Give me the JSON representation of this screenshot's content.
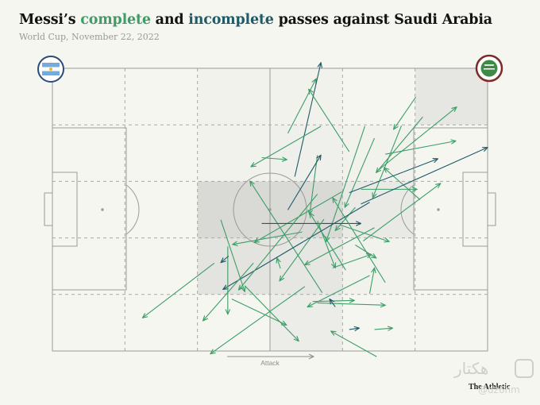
{
  "title": {
    "pre": "Messi’s ",
    "complete": "complete",
    "mid": " and ",
    "incomplete": "incomplete",
    "post": " passes against Saudi Arabia"
  },
  "subtitle": "World Cup, November 22, 2022",
  "attack_label": "Attack",
  "credit": "The Athletic",
  "watermark": {
    "arabic": "هكتار",
    "handle": "@dz6hm"
  },
  "colors": {
    "complete": "#3c9e66",
    "incomplete": "#1f5b67",
    "zone_fill": "#d9d9d6",
    "pitch_line": "#9a9a96"
  },
  "teams": {
    "home": {
      "name": "Argentina",
      "icon": "argentina-flag-badge"
    },
    "away": {
      "name": "Saudi Arabia",
      "icon": "saudi-arabia-badge"
    }
  },
  "chart_data": {
    "type": "pass-map",
    "pitch": {
      "length": 100,
      "width": 100
    },
    "zones": {
      "columns": 6,
      "rows": 5
    },
    "zone_shading": [
      {
        "col": 2,
        "row": 0,
        "level": 0.12
      },
      {
        "col": 3,
        "row": 0,
        "level": 0.12
      },
      {
        "col": 5,
        "row": 0,
        "level": 0.55
      },
      {
        "col": 2,
        "row": 1,
        "level": 0.12
      },
      {
        "col": 3,
        "row": 1,
        "level": 0.2
      },
      {
        "col": 4,
        "row": 1,
        "level": 0.12
      },
      {
        "col": 2,
        "row": 2,
        "level": 1.0
      },
      {
        "col": 3,
        "row": 2,
        "level": 1.0
      },
      {
        "col": 4,
        "row": 2,
        "level": 0.45
      },
      {
        "col": 2,
        "row": 3,
        "level": 0.65
      },
      {
        "col": 3,
        "row": 3,
        "level": 0.55
      },
      {
        "col": 4,
        "row": 3,
        "level": 0.12
      },
      {
        "col": 3,
        "row": 4,
        "level": 0.35
      }
    ],
    "passes": [
      {
        "x1": 54.1,
        "y1": 23.0,
        "x2": 60.6,
        "y2": 3.7,
        "outcome": "complete"
      },
      {
        "x1": 55.7,
        "y1": 38.3,
        "x2": 61.7,
        "y2": -2.0,
        "outcome": "incomplete"
      },
      {
        "x1": 61.7,
        "y1": 20.5,
        "x2": 45.6,
        "y2": 34.8,
        "outcome": "complete"
      },
      {
        "x1": 68.2,
        "y1": 29.5,
        "x2": 58.9,
        "y2": 7.4,
        "outcome": "complete"
      },
      {
        "x1": 71.8,
        "y1": 20.5,
        "x2": 62.9,
        "y2": 61.3,
        "outcome": "complete"
      },
      {
        "x1": 74.0,
        "y1": 24.7,
        "x2": 67.2,
        "y2": 49.2,
        "outcome": "complete"
      },
      {
        "x1": 60.9,
        "y1": 30.7,
        "x2": 59.1,
        "y2": 51.8,
        "outcome": "complete"
      },
      {
        "x1": 48.1,
        "y1": 31.6,
        "x2": 53.9,
        "y2": 32.3,
        "outcome": "complete"
      },
      {
        "x1": 54.1,
        "y1": 50.1,
        "x2": 61.7,
        "y2": 30.7,
        "outcome": "incomplete"
      },
      {
        "x1": 52.4,
        "y1": 70.8,
        "x2": 51.6,
        "y2": 67.1,
        "outcome": "complete"
      },
      {
        "x1": 66.5,
        "y1": 43.7,
        "x2": 46.4,
        "y2": 61.6,
        "outcome": "complete"
      },
      {
        "x1": 67.4,
        "y1": 71.4,
        "x2": 59.1,
        "y2": 51.1,
        "outcome": "complete"
      },
      {
        "x1": 69.6,
        "y1": 49.2,
        "x2": 65.0,
        "y2": 57.4,
        "outcome": "complete"
      },
      {
        "x1": 62.0,
        "y1": 79.4,
        "x2": 45.4,
        "y2": 39.9,
        "outcome": "complete"
      },
      {
        "x1": 57.4,
        "y1": 57.9,
        "x2": 41.4,
        "y2": 62.3,
        "outcome": "complete"
      },
      {
        "x1": 48.1,
        "y1": 54.9,
        "x2": 70.9,
        "y2": 54.9,
        "outcome": "incomplete"
      },
      {
        "x1": 60.9,
        "y1": 54.0,
        "x2": 65.0,
        "y2": 70.6,
        "outcome": "complete"
      },
      {
        "x1": 64.4,
        "y1": 70.6,
        "x2": 73.3,
        "y2": 65.8,
        "outcome": "complete"
      },
      {
        "x1": 76.5,
        "y1": 75.8,
        "x2": 64.4,
        "y2": 45.8,
        "outcome": "complete"
      },
      {
        "x1": 84.5,
        "y1": 46.5,
        "x2": 76.2,
        "y2": 35.2,
        "outcome": "complete"
      },
      {
        "x1": 80.2,
        "y1": 20.3,
        "x2": 73.6,
        "y2": 45.8,
        "outcome": "complete"
      },
      {
        "x1": 76.5,
        "y1": 30.4,
        "x2": 92.7,
        "y2": 25.7,
        "outcome": "complete"
      },
      {
        "x1": 85.1,
        "y1": 17.2,
        "x2": 74.4,
        "y2": 36.9,
        "outcome": "complete"
      },
      {
        "x1": 83.5,
        "y1": 10.2,
        "x2": 78.4,
        "y2": 21.6,
        "outcome": "complete"
      },
      {
        "x1": 74.5,
        "y1": 36.5,
        "x2": 92.9,
        "y2": 13.7,
        "outcome": "complete"
      },
      {
        "x1": 71.4,
        "y1": 61.1,
        "x2": 89.2,
        "y2": 40.7,
        "outcome": "complete"
      },
      {
        "x1": 70.9,
        "y1": 42.8,
        "x2": 83.8,
        "y2": 42.8,
        "outcome": "complete"
      },
      {
        "x1": 68.2,
        "y1": 44.0,
        "x2": 88.6,
        "y2": 32.0,
        "outcome": "incomplete"
      },
      {
        "x1": 70.9,
        "y1": 48.0,
        "x2": 100.0,
        "y2": 28.0,
        "outcome": "incomplete"
      },
      {
        "x1": 66.1,
        "y1": 55.4,
        "x2": 77.4,
        "y2": 61.3,
        "outcome": "complete"
      },
      {
        "x1": 69.6,
        "y1": 62.5,
        "x2": 74.4,
        "y2": 67.1,
        "outcome": "complete"
      },
      {
        "x1": 74.0,
        "y1": 56.4,
        "x2": 58.0,
        "y2": 69.5,
        "outcome": "complete"
      },
      {
        "x1": 62.4,
        "y1": 53.4,
        "x2": 52.2,
        "y2": 75.2,
        "outcome": "complete"
      },
      {
        "x1": 72.9,
        "y1": 47.4,
        "x2": 39.2,
        "y2": 78.2,
        "outcome": "incomplete"
      },
      {
        "x1": 72.9,
        "y1": 73.3,
        "x2": 58.6,
        "y2": 84.4,
        "outcome": "complete"
      },
      {
        "x1": 59.8,
        "y1": 82.5,
        "x2": 69.4,
        "y2": 82.1,
        "outcome": "complete"
      },
      {
        "x1": 60.9,
        "y1": 83.0,
        "x2": 76.5,
        "y2": 83.8,
        "outcome": "complete"
      },
      {
        "x1": 68.2,
        "y1": 92.4,
        "x2": 70.5,
        "y2": 91.9,
        "outcome": "incomplete"
      },
      {
        "x1": 65.0,
        "y1": 84.4,
        "x2": 63.7,
        "y2": 81.6,
        "outcome": "incomplete"
      },
      {
        "x1": 58.0,
        "y1": 77.2,
        "x2": 36.3,
        "y2": 101.0,
        "outcome": "complete"
      },
      {
        "x1": 40.3,
        "y1": 63.0,
        "x2": 40.3,
        "y2": 87.0,
        "outcome": "complete"
      },
      {
        "x1": 46.2,
        "y1": 68.9,
        "x2": 34.6,
        "y2": 89.3,
        "outcome": "complete"
      },
      {
        "x1": 44.2,
        "y1": 76.9,
        "x2": 56.6,
        "y2": 96.5,
        "outcome": "complete"
      },
      {
        "x1": 41.2,
        "y1": 81.6,
        "x2": 53.8,
        "y2": 90.8,
        "outcome": "complete"
      },
      {
        "x1": 38.7,
        "y1": 53.6,
        "x2": 44.2,
        "y2": 79.0,
        "outcome": "complete"
      },
      {
        "x1": 60.9,
        "y1": 44.5,
        "x2": 42.8,
        "y2": 78.4,
        "outcome": "complete"
      },
      {
        "x1": 37.2,
        "y1": 68.9,
        "x2": 20.7,
        "y2": 88.3,
        "outcome": "complete"
      },
      {
        "x1": 40.5,
        "y1": 66.4,
        "x2": 38.7,
        "y2": 68.7,
        "outcome": "incomplete"
      },
      {
        "x1": 72.9,
        "y1": 79.7,
        "x2": 74.0,
        "y2": 70.6,
        "outcome": "complete"
      },
      {
        "x1": 74.0,
        "y1": 92.4,
        "x2": 78.2,
        "y2": 91.9,
        "outcome": "complete"
      },
      {
        "x1": 74.5,
        "y1": 102.0,
        "x2": 64.0,
        "y2": 93.0,
        "outcome": "complete"
      }
    ]
  }
}
